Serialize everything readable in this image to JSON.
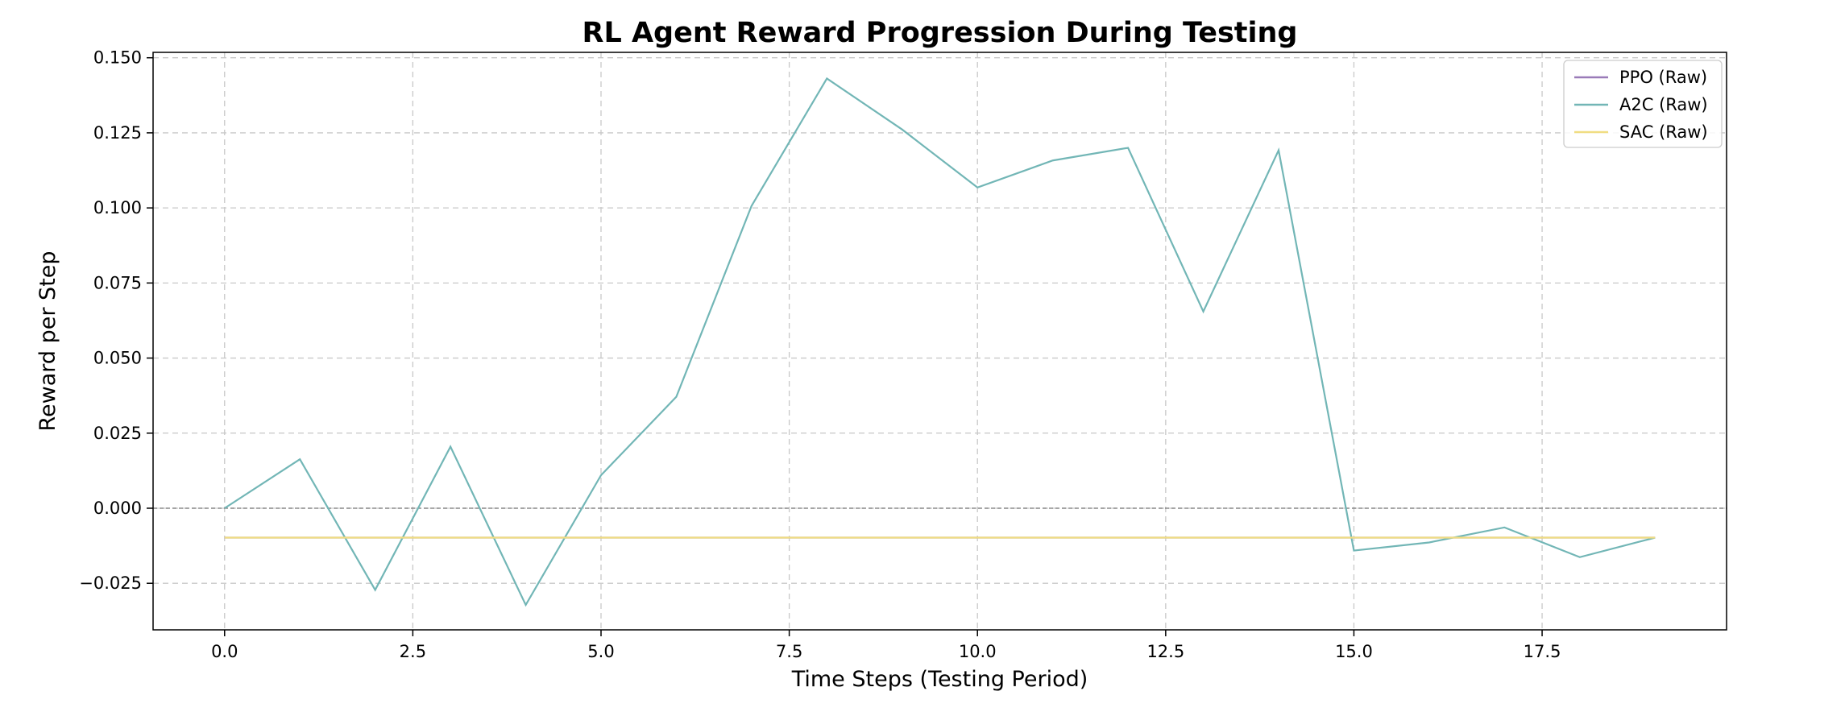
{
  "chart_data": {
    "type": "line",
    "title": "RL Agent Reward Progression During Testing",
    "xlabel": "Time Steps (Testing Period)",
    "ylabel": "Reward per Step",
    "xlim": [
      -0.95,
      19.95
    ],
    "ylim": [
      -0.0405,
      0.1518
    ],
    "x_ticks": [
      0.0,
      2.5,
      5.0,
      7.5,
      10.0,
      12.5,
      15.0,
      17.5
    ],
    "x_tick_labels": [
      "0.0",
      "2.5",
      "5.0",
      "7.5",
      "10.0",
      "12.5",
      "15.0",
      "17.5"
    ],
    "y_ticks": [
      -0.025,
      0.0,
      0.025,
      0.05,
      0.075,
      0.1,
      0.125,
      0.15
    ],
    "y_tick_labels": [
      "−0.025",
      "0.000",
      "0.025",
      "0.050",
      "0.075",
      "0.100",
      "0.125",
      "0.150"
    ],
    "grid": true,
    "zero_line": true,
    "legend_position": "top-right",
    "x": [
      0,
      1,
      2,
      3,
      4,
      5,
      6,
      7,
      8,
      9,
      10,
      11,
      12,
      13,
      14,
      15,
      16,
      17,
      18,
      19
    ],
    "series": [
      {
        "name": "PPO (Raw)",
        "color": "#9a7bb8",
        "values": [
          -0.0098,
          -0.0098,
          -0.0098,
          -0.0098,
          -0.0098,
          -0.0098,
          -0.0098,
          -0.0098,
          -0.0098,
          -0.0098,
          -0.0098,
          -0.0098,
          -0.0098,
          -0.0098,
          -0.0098,
          -0.0098,
          -0.0098,
          -0.0098,
          -0.0098,
          -0.0098
        ]
      },
      {
        "name": "A2C (Raw)",
        "color": "#72b6b6",
        "values": [
          0.0,
          0.0163,
          -0.0272,
          0.0205,
          -0.0322,
          0.011,
          0.0371,
          0.1007,
          0.1431,
          0.1261,
          0.1068,
          0.1158,
          0.12,
          0.0655,
          0.1192,
          -0.0141,
          -0.0114,
          -0.0064,
          -0.0163,
          -0.0098
        ]
      },
      {
        "name": "SAC (Raw)",
        "color": "#f0dd82",
        "values": [
          -0.0098,
          -0.0098,
          -0.0098,
          -0.0098,
          -0.0098,
          -0.0098,
          -0.0098,
          -0.0098,
          -0.0098,
          -0.0098,
          -0.0098,
          -0.0098,
          -0.0098,
          -0.0098,
          -0.0098,
          -0.0098,
          -0.0098,
          -0.0098,
          -0.0098,
          -0.0098
        ]
      }
    ]
  }
}
